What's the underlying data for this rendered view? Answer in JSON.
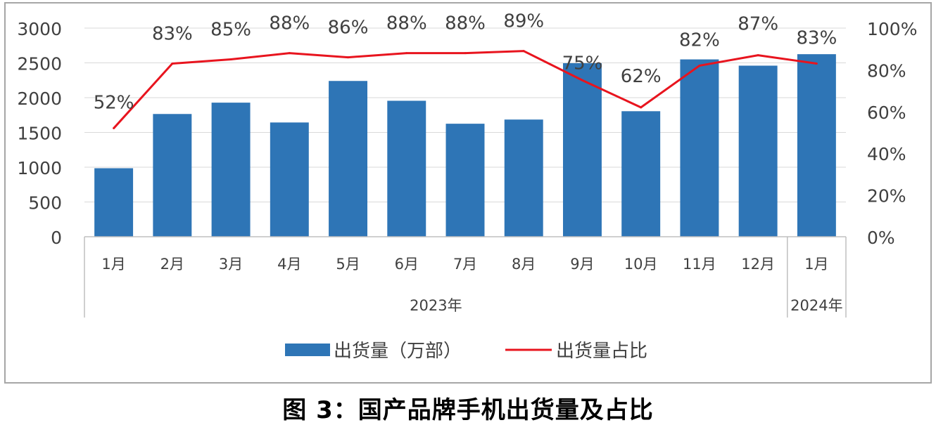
{
  "figure": {
    "caption": "图 3：国产品牌手机出货量及占比"
  },
  "chart_data": {
    "type": "bar",
    "categories": [
      "1月",
      "2月",
      "3月",
      "4月",
      "5月",
      "6月",
      "7月",
      "8月",
      "9月",
      "10月",
      "11月",
      "12月",
      "1月"
    ],
    "groups": [
      {
        "label": "2023年",
        "span": 12
      },
      {
        "label": "2024年",
        "span": 1
      }
    ],
    "series": [
      {
        "name": "出货量（万部）",
        "type": "bar",
        "axis": "left",
        "color": "#2e75b6",
        "values": [
          985,
          1765,
          1928,
          1643,
          2240,
          1955,
          1625,
          1685,
          2495,
          1805,
          2550,
          2460,
          2625
        ]
      },
      {
        "name": "出货量占比",
        "type": "line",
        "axis": "right",
        "color": "#e8141e",
        "values": [
          52,
          83,
          85,
          88,
          86,
          88,
          88,
          89,
          75,
          62,
          82,
          87,
          83
        ],
        "labels": [
          "52%",
          "83%",
          "85%",
          "88%",
          "86%",
          "88%",
          "88%",
          "89%",
          "75%",
          "62%",
          "82%",
          "87%",
          "83%"
        ]
      }
    ],
    "y_left": {
      "min": 0,
      "max": 3000,
      "ticks": [
        "0",
        "500",
        "1000",
        "1500",
        "2000",
        "2500",
        "3000"
      ]
    },
    "y_right": {
      "min": 0,
      "max": 100,
      "ticks": [
        "0%",
        "20%",
        "40%",
        "60%",
        "80%",
        "100%"
      ]
    },
    "grid": true,
    "legend_position": "bottom"
  }
}
